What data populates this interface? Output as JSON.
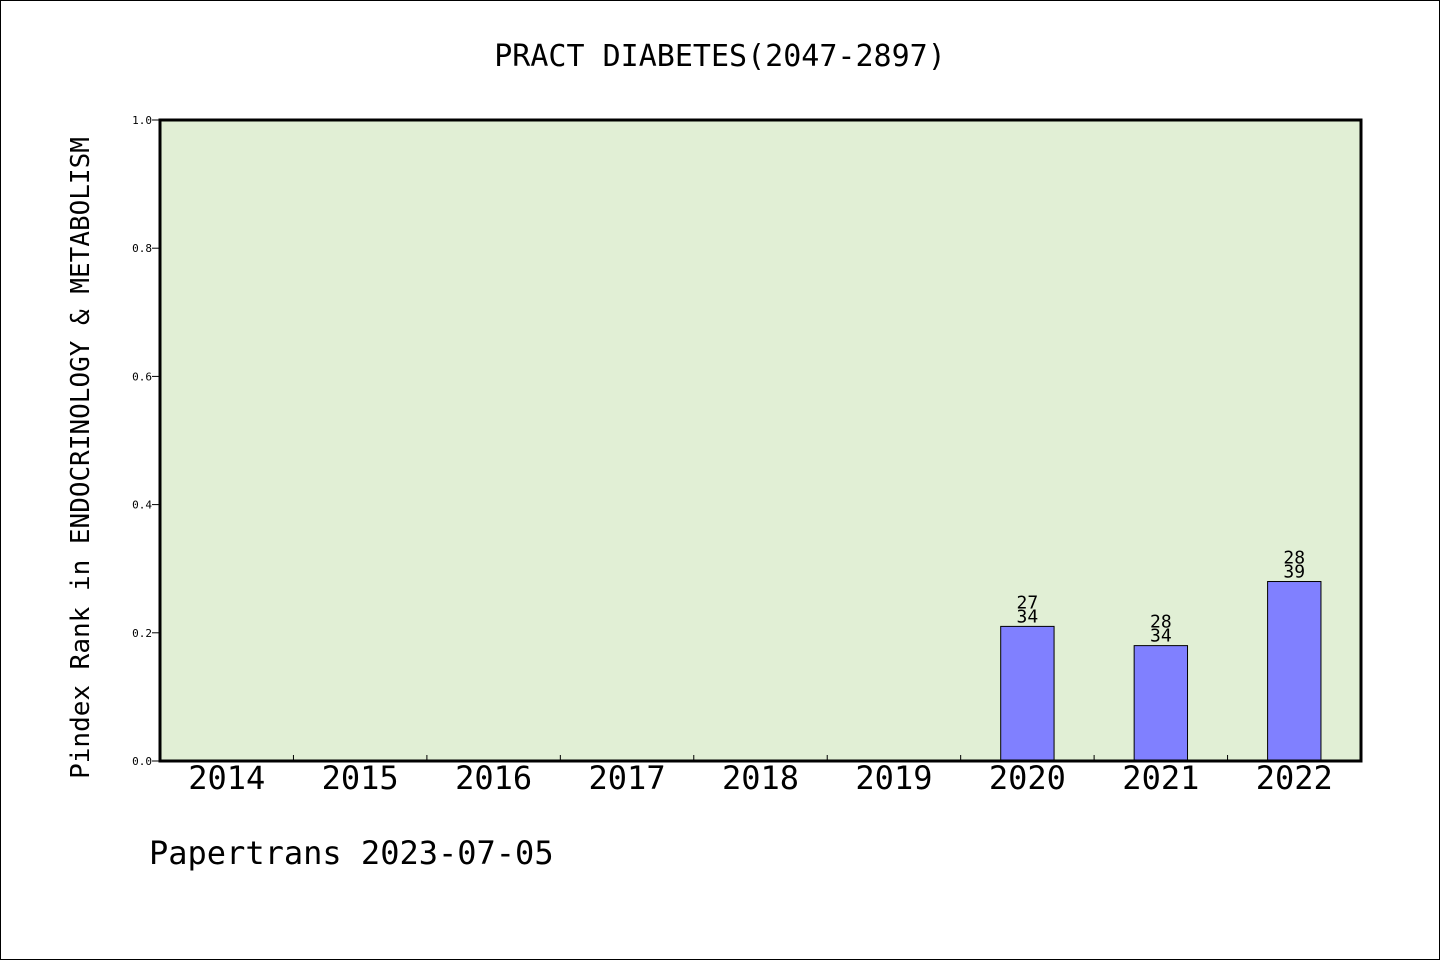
{
  "chart_data": {
    "type": "bar",
    "title": "PRACT DIABETES(2047-2897)",
    "xlabel": "",
    "ylabel": "Pindex Rank in ENDOCRINOLOGY & METABOLISM",
    "categories": [
      "2014",
      "2015",
      "2016",
      "2017",
      "2018",
      "2019",
      "2020",
      "2021",
      "2022"
    ],
    "values": [
      null,
      null,
      null,
      null,
      null,
      null,
      0.21,
      0.18,
      0.28
    ],
    "bar_labels": [
      null,
      null,
      null,
      null,
      null,
      null,
      {
        "rank": "27",
        "total": "34"
      },
      {
        "rank": "28",
        "total": "34"
      },
      {
        "rank": "28",
        "total": "39"
      }
    ],
    "ylim": [
      0.0,
      1.0
    ],
    "yticks": [
      "0.0",
      "0.2",
      "0.4",
      "0.6",
      "0.8",
      "1.0"
    ],
    "grid": false,
    "colors": {
      "plot_background": "#e1efd5",
      "bar_fill": "#8080ff",
      "bar_edge": "#000000"
    }
  },
  "footer": {
    "credit": "Papertrans 2023-07-05"
  }
}
